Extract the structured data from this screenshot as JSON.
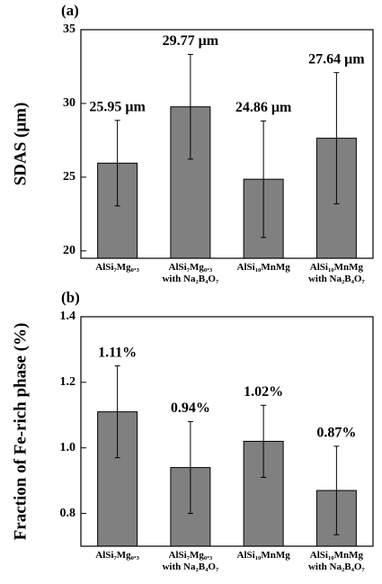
{
  "chart_data": [
    {
      "type": "bar",
      "panel": "(a)",
      "y_label": "SDAS (μm)",
      "categories": [
        "AlSi₇Mg₀.₃",
        "AlSi₇Mg₀.₃\nwith Na₂B₄O₇",
        "AlSi₁₀MnMg",
        "AlSi₁₀MnMg\nwith Na₂B₄O₇"
      ],
      "values": [
        25.95,
        29.77,
        24.86,
        27.64
      ],
      "errors": [
        2.9,
        3.55,
        3.95,
        4.45
      ],
      "value_labels": [
        "25.95 μm",
        "29.77 μm",
        "24.86 μm",
        "27.64 μm"
      ],
      "color": "#808080",
      "ylim": [
        19.5,
        35
      ],
      "yticks": [
        20,
        25,
        30,
        35
      ]
    },
    {
      "type": "bar",
      "panel": "(b)",
      "y_label": "Fraction of Fe-rich phase (%)",
      "categories": [
        "AlSi₇Mg₀.₃",
        "AlSi₇Mg₀.₃\nwith Na₂B₄O₇",
        "AlSi₁₀MnMg",
        "AlSi₁₀MnMg\nwith Na₂B₄O₇"
      ],
      "values": [
        1.11,
        0.94,
        1.02,
        0.87
      ],
      "errors": [
        0.14,
        0.14,
        0.11,
        0.135
      ],
      "value_labels": [
        "1.11%",
        "0.94%",
        "1.02%",
        "0.87%"
      ],
      "color": "#808080",
      "ylim": [
        0.7,
        1.4
      ],
      "yticks": [
        0.8,
        {
          "value": 1,
          "label": "1.0"
        },
        1.2,
        1.4
      ]
    }
  ]
}
